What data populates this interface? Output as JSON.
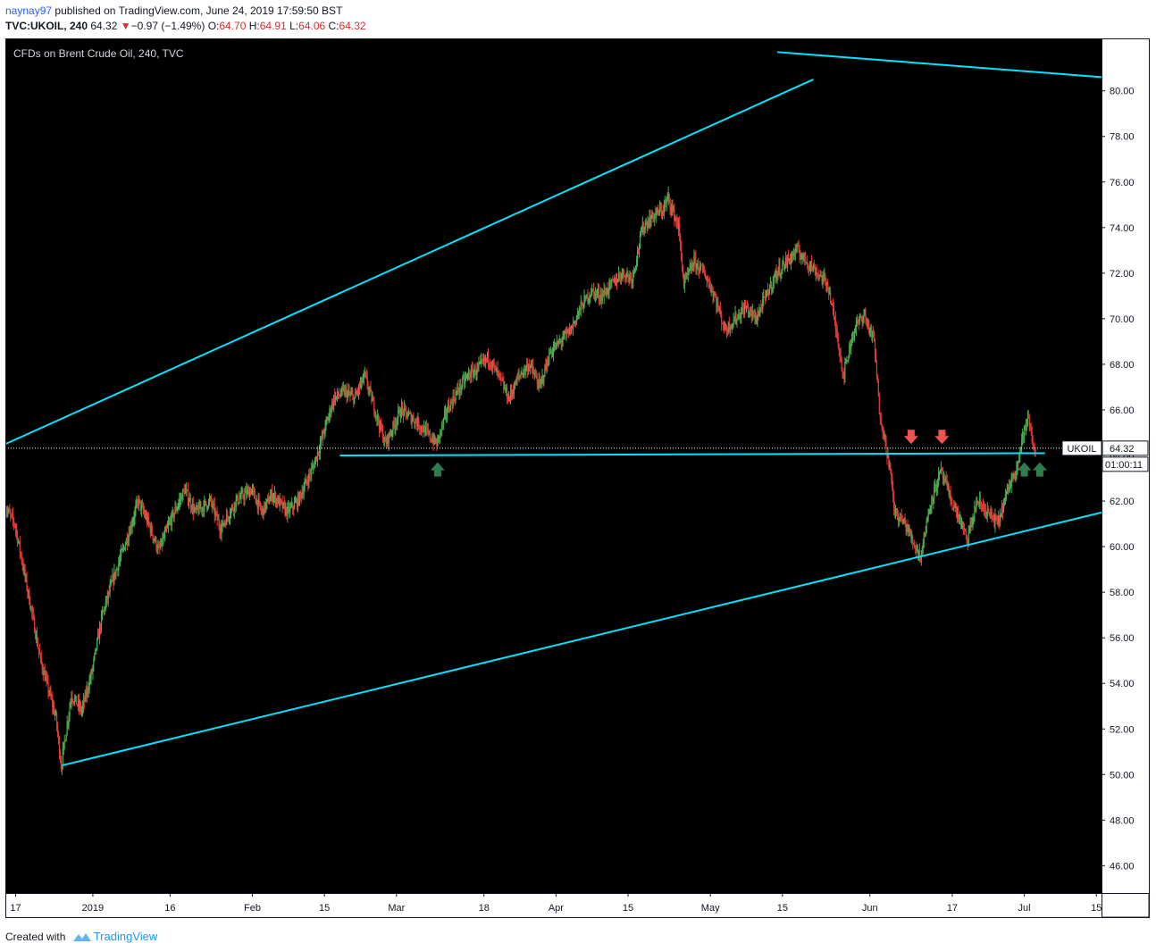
{
  "header": {
    "publisher": "naynay97",
    "published_text": "published on TradingView.com, June 24, 2019 17:59:50 BST",
    "symbol": "TVC:UKOIL, 240",
    "last": "64.32",
    "change": "−0.97 (−1.49%)",
    "open_label": "O:",
    "open": "64.70",
    "high_label": "H:",
    "high": "64.91",
    "low_label": "L:",
    "low": "64.06",
    "close_label": "C:",
    "close": "64.32"
  },
  "footer": {
    "created_with": "Created with",
    "brand": "TradingView"
  },
  "colors": {
    "background": "#000000",
    "up": "#4caf50",
    "down": "#e53935",
    "trendline": "#00e5ff",
    "arrow_up": "#2e7d4f",
    "arrow_down": "#ef5350"
  },
  "chart_data": {
    "type": "candlestick",
    "title": "CFDs on Brent Crude Oil, 240, TVC",
    "ylim": [
      44.8,
      82.3
    ],
    "y_ticks": [
      "80.00",
      "78.00",
      "76.00",
      "74.00",
      "72.00",
      "70.00",
      "68.00",
      "66.00",
      "64.00",
      "62.00",
      "60.00",
      "58.00",
      "56.00",
      "54.00",
      "52.00",
      "50.00",
      "48.00",
      "46.00"
    ],
    "x_ticks": [
      {
        "label": "17",
        "day": 0
      },
      {
        "label": "2019",
        "day": 15
      },
      {
        "label": "16",
        "day": 30
      },
      {
        "label": "Feb",
        "day": 46
      },
      {
        "label": "15",
        "day": 60
      },
      {
        "label": "Mar",
        "day": 74
      },
      {
        "label": "18",
        "day": 91
      },
      {
        "label": "Apr",
        "day": 105
      },
      {
        "label": "15",
        "day": 119
      },
      {
        "label": "May",
        "day": 135
      },
      {
        "label": "15",
        "day": 149
      },
      {
        "label": "Jun",
        "day": 166
      },
      {
        "label": "17",
        "day": 182
      },
      {
        "label": "Jul",
        "day": 196
      },
      {
        "label": "15",
        "day": 210
      }
    ],
    "xlim_days": [
      -2,
      211
    ],
    "price_path": [
      [
        -2,
        61.8
      ],
      [
        0,
        61.0
      ],
      [
        3,
        57.5
      ],
      [
        5,
        55.0
      ],
      [
        8,
        52.5
      ],
      [
        9,
        50.4
      ],
      [
        11,
        53.5
      ],
      [
        13,
        52.8
      ],
      [
        15,
        54.5
      ],
      [
        17,
        57.0
      ],
      [
        19,
        58.5
      ],
      [
        22,
        60.5
      ],
      [
        24,
        62.0
      ],
      [
        26,
        61.0
      ],
      [
        28,
        59.8
      ],
      [
        30,
        61.0
      ],
      [
        33,
        62.5
      ],
      [
        35,
        61.5
      ],
      [
        38,
        62.0
      ],
      [
        40,
        60.8
      ],
      [
        43,
        62.0
      ],
      [
        46,
        62.5
      ],
      [
        48,
        61.5
      ],
      [
        50,
        62.3
      ],
      [
        53,
        61.5
      ],
      [
        55,
        62.0
      ],
      [
        58,
        63.5
      ],
      [
        60,
        65.0
      ],
      [
        62,
        66.5
      ],
      [
        64,
        66.8
      ],
      [
        66,
        66.5
      ],
      [
        68,
        67.5
      ],
      [
        70,
        66.0
      ],
      [
        72,
        64.5
      ],
      [
        73,
        65.0
      ],
      [
        75,
        66.0
      ],
      [
        78,
        65.5
      ],
      [
        80,
        65.0
      ],
      [
        82,
        64.5
      ],
      [
        84,
        66.0
      ],
      [
        86,
        66.8
      ],
      [
        88,
        67.5
      ],
      [
        90,
        67.8
      ],
      [
        92,
        68.3
      ],
      [
        94,
        67.5
      ],
      [
        96,
        66.5
      ],
      [
        98,
        67.5
      ],
      [
        100,
        68.0
      ],
      [
        102,
        67.0
      ],
      [
        104,
        68.5
      ],
      [
        106,
        69.0
      ],
      [
        108,
        69.5
      ],
      [
        110,
        70.5
      ],
      [
        112,
        71.2
      ],
      [
        114,
        71.0
      ],
      [
        116,
        71.5
      ],
      [
        118,
        72.0
      ],
      [
        120,
        71.8
      ],
      [
        122,
        74.0
      ],
      [
        124,
        74.5
      ],
      [
        126,
        74.8
      ],
      [
        127,
        75.3
      ],
      [
        129,
        74.0
      ],
      [
        130,
        71.5
      ],
      [
        132,
        72.5
      ],
      [
        134,
        72.0
      ],
      [
        136,
        71.0
      ],
      [
        138,
        69.5
      ],
      [
        140,
        70.0
      ],
      [
        142,
        70.5
      ],
      [
        144,
        70.0
      ],
      [
        146,
        71.0
      ],
      [
        148,
        72.0
      ],
      [
        150,
        72.5
      ],
      [
        152,
        73.0
      ],
      [
        154,
        72.5
      ],
      [
        156,
        72.0
      ],
      [
        158,
        71.5
      ],
      [
        160,
        69.0
      ],
      [
        161,
        67.5
      ],
      [
        163,
        69.5
      ],
      [
        165,
        70.2
      ],
      [
        167,
        69.0
      ],
      [
        168,
        66.0
      ],
      [
        170,
        63.5
      ],
      [
        171,
        61.5
      ],
      [
        173,
        61.0
      ],
      [
        175,
        60.0
      ],
      [
        176,
        59.6
      ],
      [
        178,
        62.0
      ],
      [
        180,
        63.3
      ],
      [
        182,
        62.0
      ],
      [
        184,
        61.0
      ],
      [
        185,
        60.2
      ],
      [
        187,
        62.0
      ],
      [
        189,
        61.5
      ],
      [
        191,
        61.0
      ],
      [
        193,
        62.5
      ],
      [
        195,
        63.8
      ],
      [
        196,
        65.0
      ],
      [
        197,
        65.6
      ],
      [
        198,
        64.3
      ]
    ],
    "pivots": [
      [
        9,
        50.4
      ],
      [
        127,
        75.5
      ],
      [
        176,
        59.5
      ]
    ],
    "last_price": 64.32,
    "last_price_label": "UKOIL",
    "last_price_value": "64.32",
    "countdown": "01:00:11",
    "drawings": {
      "channel_upper": [
        [
          -2,
          64.5
        ],
        [
          155,
          80.5
        ]
      ],
      "channel_lower": [
        [
          9,
          50.4
        ],
        [
          211,
          61.5
        ]
      ],
      "top_line": [
        [
          148,
          81.7
        ],
        [
          211,
          80.6
        ]
      ],
      "support": [
        [
          63,
          64.0
        ],
        [
          200,
          64.1
        ]
      ]
    },
    "arrows": [
      {
        "direction": "up",
        "day": 82,
        "price": 63.7
      },
      {
        "direction": "down",
        "day": 174,
        "price": 64.5
      },
      {
        "direction": "down",
        "day": 180,
        "price": 64.5
      },
      {
        "direction": "up",
        "day": 196,
        "price": 63.7
      },
      {
        "direction": "up",
        "day": 199,
        "price": 63.7
      }
    ]
  }
}
